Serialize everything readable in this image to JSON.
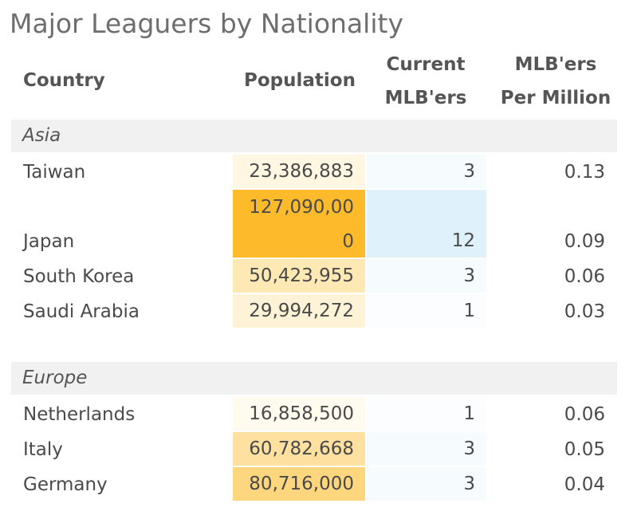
{
  "chart_data": {
    "type": "table",
    "title": "Major Leaguers by Nationality",
    "columns": [
      "Country",
      "Population",
      "Current MLB'ers",
      "MLB'ers Per Million"
    ],
    "column_header_lines": {
      "country": [
        "Country"
      ],
      "population": [
        "Population"
      ],
      "mlbers": [
        "Current",
        "MLB'ers"
      ],
      "per_million": [
        "MLB'ers",
        "Per Million"
      ]
    },
    "groups": [
      {
        "name": "Asia",
        "rows": [
          {
            "country": "Taiwan",
            "population": 23386883,
            "population_label": "23,386,883",
            "mlbers": 3,
            "mlbers_label": "3",
            "per_million": 0.13,
            "per_million_label": "0.13"
          },
          {
            "country": "Japan",
            "population": 127090000,
            "population_label": "127,090,000",
            "mlbers": 12,
            "mlbers_label": "12",
            "per_million": 0.09,
            "per_million_label": "0.09"
          },
          {
            "country": "South Korea",
            "population": 50423955,
            "population_label": "50,423,955",
            "mlbers": 3,
            "mlbers_label": "3",
            "per_million": 0.06,
            "per_million_label": "0.06"
          },
          {
            "country": "Saudi Arabia",
            "population": 29994272,
            "population_label": "29,994,272",
            "mlbers": 1,
            "mlbers_label": "1",
            "per_million": 0.03,
            "per_million_label": "0.03"
          }
        ]
      },
      {
        "name": "Europe",
        "rows": [
          {
            "country": "Netherlands",
            "population": 16858500,
            "population_label": "16,858,500",
            "mlbers": 1,
            "mlbers_label": "1",
            "per_million": 0.06,
            "per_million_label": "0.06"
          },
          {
            "country": "Italy",
            "population": 60782668,
            "population_label": "60,782,668",
            "mlbers": 3,
            "mlbers_label": "3",
            "per_million": 0.05,
            "per_million_label": "0.05"
          },
          {
            "country": "Germany",
            "population": 80716000,
            "population_label": "80,716,000",
            "mlbers": 3,
            "mlbers_label": "3",
            "per_million": 0.04,
            "per_million_label": "0.04"
          }
        ]
      }
    ],
    "colors": {
      "population_scale": [
        "#fffbee",
        "#fdbb2b"
      ],
      "mlbers_scale": [
        "#fbfdff",
        "#dff1fb"
      ],
      "section_background": "#f1f1f1"
    }
  }
}
